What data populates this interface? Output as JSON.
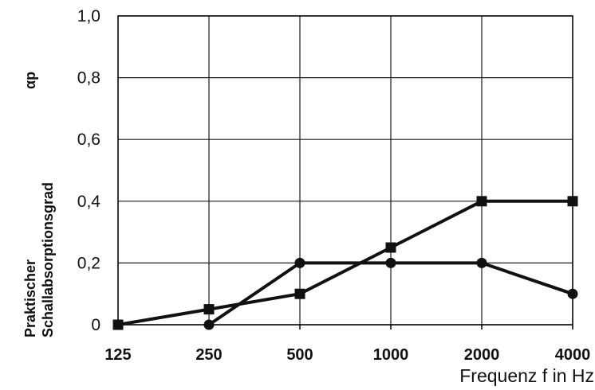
{
  "chart_data": {
    "type": "line",
    "categories": [
      "125",
      "250",
      "500",
      "1000",
      "2000",
      "4000"
    ],
    "y_ticks": [
      "0",
      "0,2",
      "0,4",
      "0,6",
      "0,8",
      "1,0"
    ],
    "ylim": [
      0,
      1.0
    ],
    "xlabel": "Frequenz  f in Hz",
    "ylabel_lines": [
      "Praktischer",
      "Schallabsorptionsgrad"
    ],
    "ylabel_symbol": "αp",
    "grid": true,
    "series": [
      {
        "marker": "square",
        "values": [
          0,
          0.05,
          0.1,
          0.25,
          0.4,
          0.4
        ],
        "color": "#111111"
      },
      {
        "marker": "circle",
        "values": [
          null,
          0,
          0.2,
          0.2,
          0.2,
          0.1
        ],
        "color": "#111111"
      }
    ]
  }
}
